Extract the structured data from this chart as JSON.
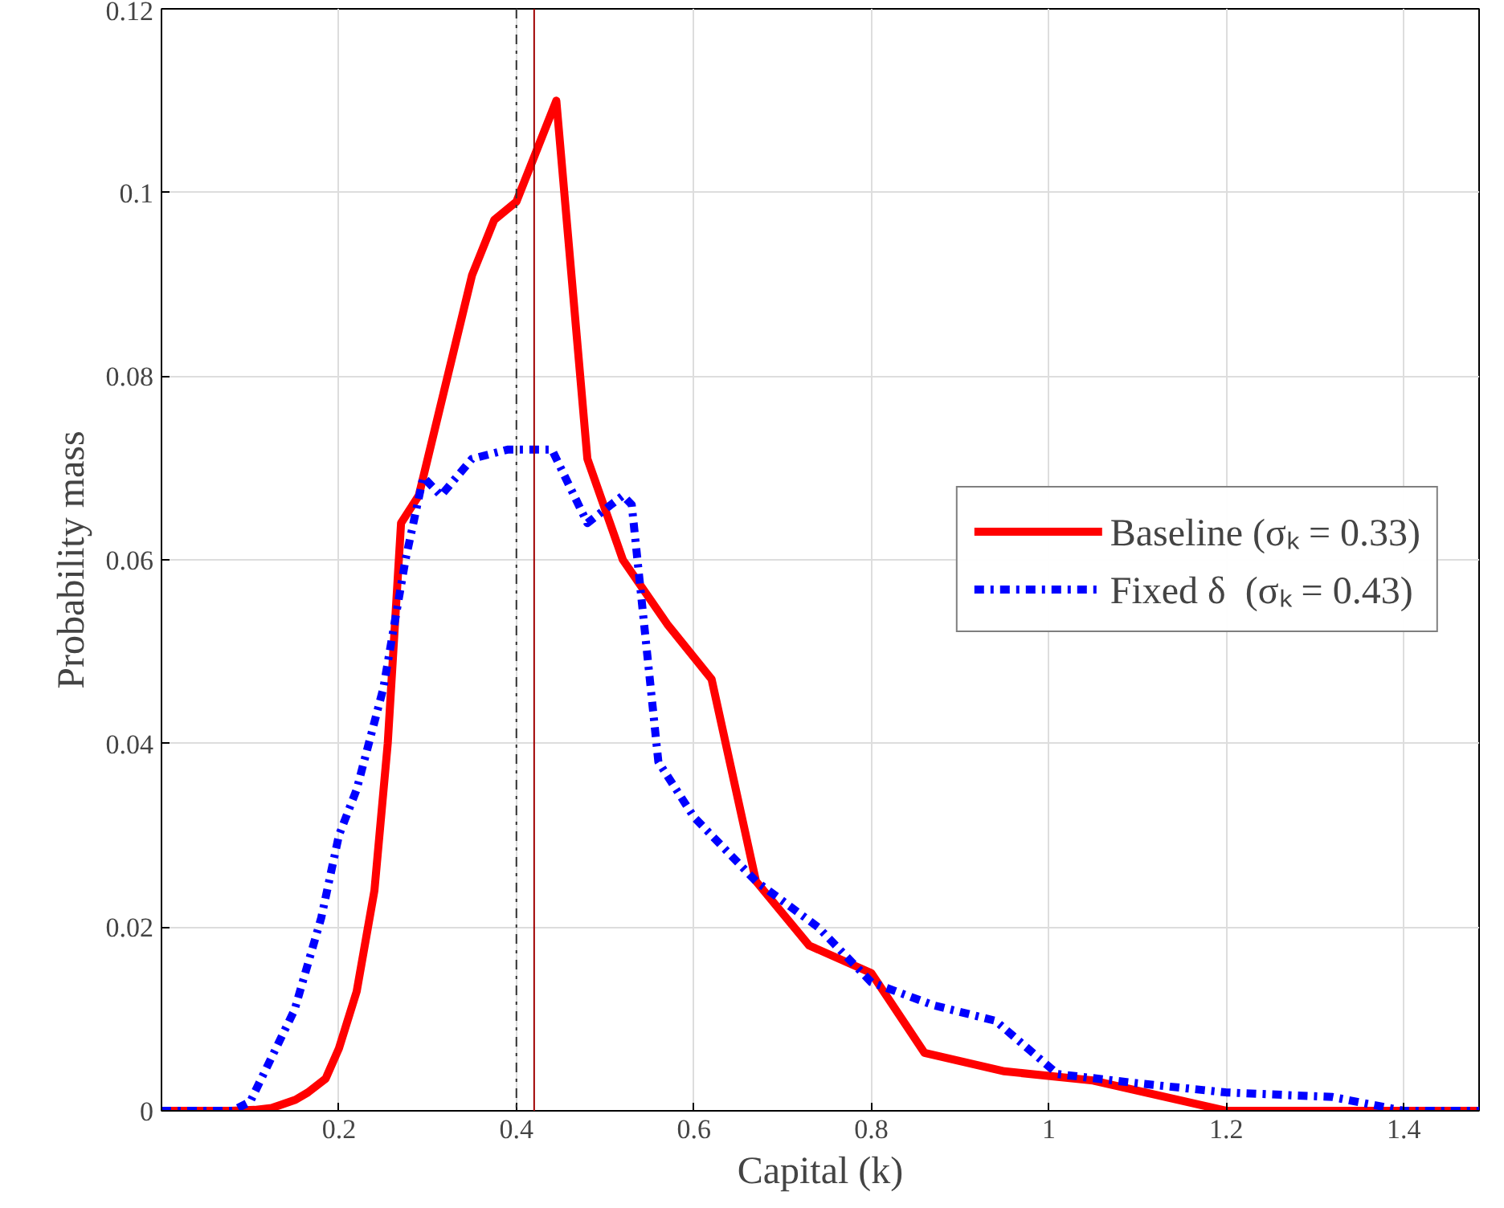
{
  "chart_data": {
    "type": "line",
    "xlabel": "Capital (k)",
    "ylabel": "Probability mass",
    "xlim": [
      0,
      1.485
    ],
    "ylim": [
      0,
      0.12
    ],
    "xticks": [
      0.2,
      0.4,
      0.6,
      0.8,
      1,
      1.2,
      1.4
    ],
    "yticks": [
      0,
      0.02,
      0.04,
      0.06,
      0.08,
      0.1,
      0.12
    ],
    "grid": true,
    "legend": "right",
    "ref_lines": [
      {
        "axis": "x",
        "value": 0.4,
        "color": "#333333",
        "line_style": "dashdot"
      },
      {
        "axis": "x",
        "value": 0.42,
        "color": "#a00000",
        "line_style": "solid"
      }
    ],
    "series": [
      {
        "name": "Baseline (σₖ = 0.33)",
        "color": "#ff0000",
        "line_style": "solid",
        "x": [
          0,
          0.078,
          0.105,
          0.124,
          0.136,
          0.151,
          0.165,
          0.185,
          0.2,
          0.22,
          0.24,
          0.255,
          0.27,
          0.29,
          0.35,
          0.375,
          0.4,
          0.445,
          0.48,
          0.52,
          0.57,
          0.62,
          0.67,
          0.73,
          0.8,
          0.86,
          0.95,
          1.05,
          1.2,
          1.485
        ],
        "values": [
          0,
          0,
          0.0001,
          0.0003,
          0.0007,
          0.0012,
          0.002,
          0.0035,
          0.0068,
          0.013,
          0.024,
          0.04,
          0.064,
          0.067,
          0.091,
          0.097,
          0.099,
          0.11,
          0.071,
          0.06,
          0.053,
          0.047,
          0.025,
          0.018,
          0.015,
          0.0063,
          0.0043,
          0.0033,
          0,
          0
        ]
      },
      {
        "name": "Fixed δ  (σₖ = 0.43)",
        "color": "#0000ff",
        "line_style": "dashdot",
        "x": [
          0,
          0.08,
          0.1,
          0.12,
          0.15,
          0.18,
          0.2,
          0.22,
          0.25,
          0.275,
          0.295,
          0.315,
          0.35,
          0.39,
          0.44,
          0.48,
          0.52,
          0.53,
          0.56,
          0.6,
          0.67,
          0.74,
          0.8,
          0.87,
          0.94,
          1.01,
          1.1,
          1.2,
          1.32,
          1.4,
          1.485
        ],
        "values": [
          0,
          0,
          0.001,
          0.005,
          0.011,
          0.021,
          0.03,
          0.035,
          0.046,
          0.06,
          0.069,
          0.067,
          0.071,
          0.072,
          0.072,
          0.064,
          0.067,
          0.066,
          0.038,
          0.032,
          0.025,
          0.02,
          0.014,
          0.0115,
          0.0098,
          0.004,
          0.003,
          0.002,
          0.0015,
          0,
          0
        ]
      }
    ]
  }
}
